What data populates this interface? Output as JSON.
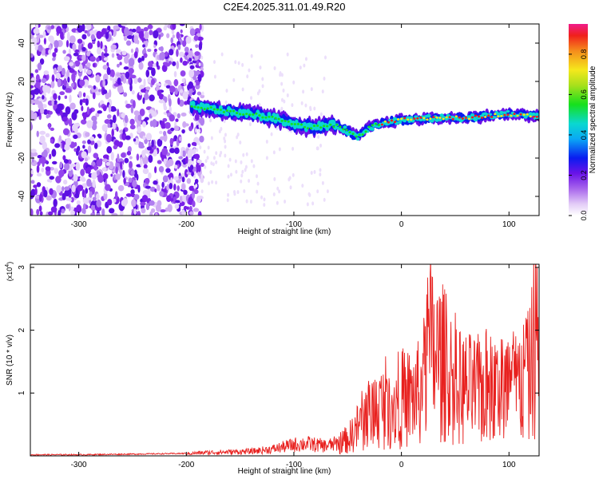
{
  "title": "C2E4.2025.311.01.49.R20",
  "chart_data": [
    {
      "type": "heatmap",
      "title": "C2E4.2025.311.01.49.R20",
      "xlabel": "Height of straight line (km)",
      "ylabel": "Frequency (Hz)",
      "xlim": [
        -345,
        128
      ],
      "ylim": [
        -50,
        50
      ],
      "xticks": [
        "-300",
        "-200",
        "-100",
        "0",
        "100"
      ],
      "yticks": [
        "40",
        "20",
        "0",
        "-20",
        "-40"
      ],
      "colorbar": {
        "label": "Normalized spectral amplitude",
        "range": [
          0,
          0.95
        ],
        "ticks": [
          "0.0",
          "0.2",
          "0.4",
          "0.6",
          "0.8"
        ]
      },
      "regions": [
        {
          "description": "broadband noise",
          "x_range": [
            -345,
            -195
          ],
          "frequency_range": [
            -50,
            50
          ],
          "amplitude": 0.15
        },
        {
          "description": "signal track",
          "x_range": [
            -195,
            128
          ],
          "frequency_center": [
            [
              -195,
              7
            ],
            [
              -180,
              6
            ],
            [
              -160,
              4
            ],
            [
              -140,
              3
            ],
            [
              -120,
              1
            ],
            [
              -100,
              -2
            ],
            [
              -85,
              -4
            ],
            [
              -70,
              -3
            ],
            [
              -60,
              -3
            ],
            [
              -50,
              -6
            ],
            [
              -40,
              -9
            ],
            [
              -30,
              -4
            ],
            [
              -20,
              -2
            ],
            [
              -10,
              -1
            ],
            [
              0,
              0
            ],
            [
              20,
              0.5
            ],
            [
              40,
              1
            ],
            [
              60,
              1
            ],
            [
              80,
              2
            ],
            [
              100,
              3
            ],
            [
              120,
              2
            ]
          ]
        }
      ]
    },
    {
      "type": "line",
      "xlabel": "Height of straight line (km)",
      "ylabel": "SNR (10 * v/v)",
      "y_multiplier": "(x10^4)",
      "xlim": [
        -345,
        128
      ],
      "ylim": [
        0,
        3.05
      ],
      "xticks": [
        "-300",
        "-200",
        "-100",
        "0",
        "100"
      ],
      "yticks": [
        "1",
        "2",
        "3"
      ],
      "color": "#e8201e",
      "series": [
        {
          "x": [
            -345,
            -300,
            -250,
            -200,
            -180,
            -160,
            -140,
            -120,
            -100,
            -90,
            -80,
            -70,
            -60,
            -50,
            -40,
            -30,
            -20,
            -10,
            0,
            10,
            20,
            25,
            30,
            40,
            50,
            60,
            70,
            80,
            90,
            100,
            110,
            120,
            125,
            128
          ],
          "y": [
            0.02,
            0.02,
            0.03,
            0.04,
            0.06,
            0.07,
            0.08,
            0.12,
            0.2,
            0.22,
            0.2,
            0.18,
            0.22,
            0.3,
            0.55,
            0.8,
            0.9,
            0.95,
            1.05,
            1.1,
            1.2,
            2.0,
            1.9,
            1.7,
            1.3,
            1.25,
            1.2,
            1.3,
            1.2,
            1.3,
            1.3,
            1.5,
            2.6,
            1.4
          ]
        }
      ]
    }
  ]
}
